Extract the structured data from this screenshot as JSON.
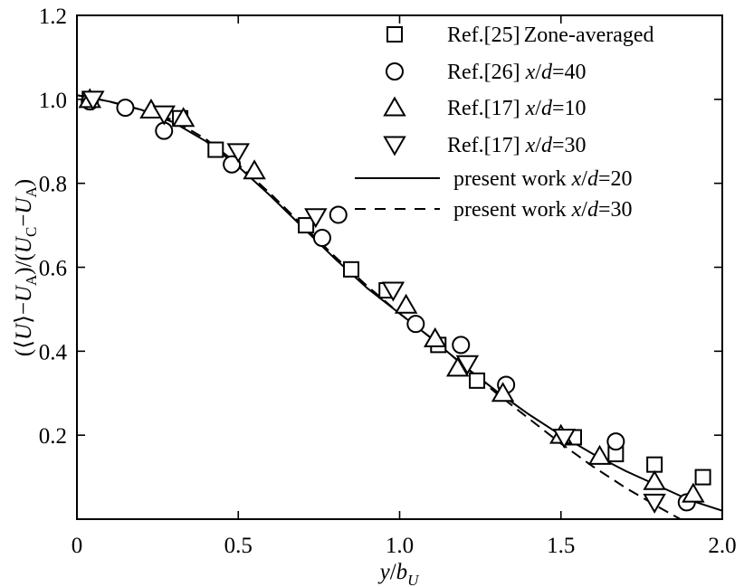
{
  "chart_data": {
    "type": "scatter",
    "xlabel": {
      "italic_part": "y",
      "slash": "/",
      "b": "b",
      "b_sub": "U"
    },
    "ylabel": {
      "p1": "(⟨",
      "U1": "U",
      "p2": "⟩−",
      "U2": "U",
      "A1": "A",
      "p3": ")/(",
      "U3": "U",
      "C": "C",
      "minus": "−",
      "U4": "U",
      "A2": "A",
      "p4": ")"
    },
    "xlim": [
      0,
      2.0
    ],
    "ylim": [
      0,
      1.2
    ],
    "xticks": [
      0,
      0.5,
      1.0,
      1.5,
      2.0
    ],
    "xtick_labels": [
      "0",
      "0.5",
      "1.0",
      "1.5",
      "2.0"
    ],
    "yticks": [
      0.2,
      0.4,
      0.6,
      0.8,
      1.0,
      1.2
    ],
    "ytick_labels": [
      "0.2",
      "0.4",
      "0.6",
      "0.8",
      "1.0",
      "1.2"
    ],
    "grid": false,
    "legend_position": "top-right",
    "series": [
      {
        "name": "Ref.[25] Zone-averaged",
        "label_parts": [
          "Ref.[25]",
          "Zone-averaged"
        ],
        "marker": "square",
        "x": [
          0.04,
          0.32,
          0.43,
          0.71,
          0.85,
          0.96,
          1.12,
          1.24,
          1.54,
          1.67,
          1.79,
          1.94
        ],
        "y": [
          1.0,
          0.955,
          0.88,
          0.7,
          0.595,
          0.545,
          0.415,
          0.33,
          0.195,
          0.155,
          0.13,
          0.1
        ]
      },
      {
        "name": "Ref.[26] x/d=40",
        "label_parts": [
          "Ref.[26] ",
          "x",
          "/",
          "d",
          "=40"
        ],
        "marker": "circle",
        "x": [
          0.04,
          0.15,
          0.27,
          0.48,
          0.76,
          0.81,
          1.05,
          1.19,
          1.33,
          1.67,
          1.89
        ],
        "y": [
          0.995,
          0.98,
          0.925,
          0.845,
          0.67,
          0.725,
          0.465,
          0.415,
          0.32,
          0.185,
          0.04
        ]
      },
      {
        "name": "Ref.[17] x/d=10",
        "label_parts": [
          "Ref.[17] ",
          "x",
          "/",
          "d",
          "=10"
        ],
        "marker": "triangle-up",
        "x": [
          0.04,
          0.23,
          0.33,
          0.55,
          1.02,
          1.11,
          1.18,
          1.32,
          1.5,
          1.62,
          1.79,
          1.91
        ],
        "y": [
          1.0,
          0.975,
          0.955,
          0.83,
          0.51,
          0.43,
          0.36,
          0.3,
          0.2,
          0.15,
          0.09,
          0.06
        ]
      },
      {
        "name": "Ref.[17] x/d=30",
        "label_parts": [
          "Ref.[17] ",
          "x",
          "/",
          "d",
          "=30"
        ],
        "marker": "triangle-down",
        "x": [
          0.05,
          0.27,
          0.5,
          0.74,
          0.98,
          1.21,
          1.51,
          1.79
        ],
        "y": [
          1.0,
          0.965,
          0.875,
          0.72,
          0.545,
          0.37,
          0.195,
          0.04
        ]
      },
      {
        "name": "present work x/d=20",
        "label_parts": [
          "present work ",
          "x",
          "/",
          "d",
          "=20"
        ],
        "style": "solid",
        "x": [
          0.0,
          0.1,
          0.2,
          0.3,
          0.4,
          0.5,
          0.6,
          0.7,
          0.8,
          0.9,
          1.0,
          1.1,
          1.2,
          1.3,
          1.4,
          1.5,
          1.6,
          1.7,
          1.8,
          1.9,
          2.0
        ],
        "y": [
          1.01,
          0.995,
          0.975,
          0.945,
          0.9,
          0.84,
          0.77,
          0.695,
          0.62,
          0.55,
          0.49,
          0.43,
          0.365,
          0.305,
          0.25,
          0.2,
          0.155,
          0.115,
          0.08,
          0.045,
          0.02
        ]
      },
      {
        "name": "present work x/d=30",
        "label_parts": [
          "present work ",
          "x",
          "/",
          "d",
          "=30"
        ],
        "style": "dashed",
        "x": [
          0.0,
          0.1,
          0.2,
          0.3,
          0.4,
          0.5,
          0.6,
          0.7,
          0.8,
          0.9,
          1.0,
          1.1,
          1.2,
          1.3,
          1.4,
          1.5,
          1.6,
          1.7,
          1.8,
          1.87
        ],
        "y": [
          1.01,
          0.995,
          0.975,
          0.95,
          0.905,
          0.845,
          0.775,
          0.7,
          0.625,
          0.555,
          0.49,
          0.43,
          0.365,
          0.3,
          0.24,
          0.18,
          0.125,
          0.075,
          0.03,
          0.0
        ]
      }
    ]
  }
}
